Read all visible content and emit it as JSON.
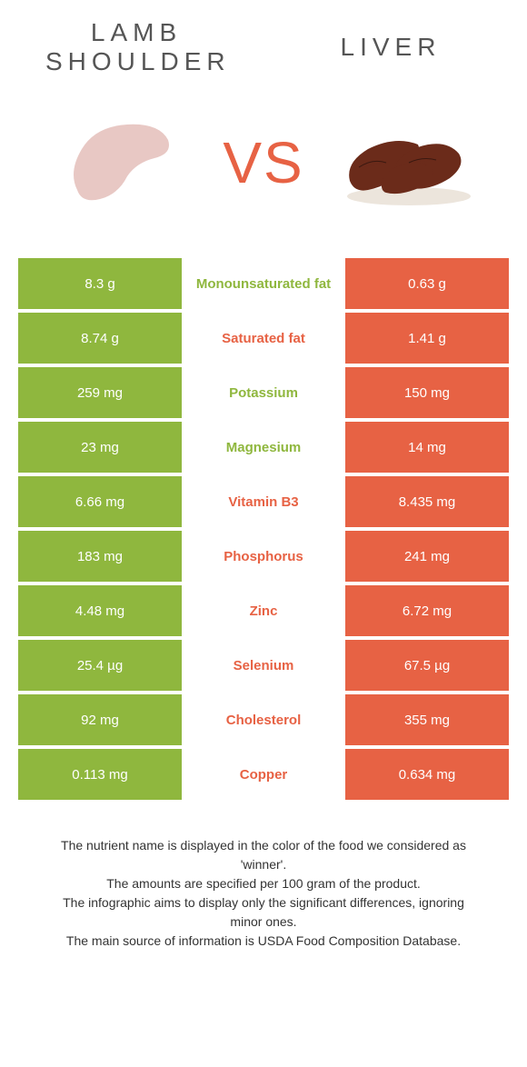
{
  "header": {
    "left_title": "LAMB SHOULDER",
    "right_title": "LIVER",
    "vs_label": "VS"
  },
  "colors": {
    "green": "#8fb73e",
    "orange": "#e76244",
    "text": "#555555"
  },
  "comparison": {
    "rows": [
      {
        "left": "8.3 g",
        "label": "Monounsaturated fat",
        "right": "0.63 g",
        "winner": "green"
      },
      {
        "left": "8.74 g",
        "label": "Saturated fat",
        "right": "1.41 g",
        "winner": "orange"
      },
      {
        "left": "259 mg",
        "label": "Potassium",
        "right": "150 mg",
        "winner": "green"
      },
      {
        "left": "23 mg",
        "label": "Magnesium",
        "right": "14 mg",
        "winner": "green"
      },
      {
        "left": "6.66 mg",
        "label": "Vitamin B3",
        "right": "8.435 mg",
        "winner": "orange"
      },
      {
        "left": "183 mg",
        "label": "Phosphorus",
        "right": "241 mg",
        "winner": "orange"
      },
      {
        "left": "4.48 mg",
        "label": "Zinc",
        "right": "6.72 mg",
        "winner": "orange"
      },
      {
        "left": "25.4 µg",
        "label": "Selenium",
        "right": "67.5 µg",
        "winner": "orange"
      },
      {
        "left": "92 mg",
        "label": "Cholesterol",
        "right": "355 mg",
        "winner": "orange"
      },
      {
        "left": "0.113 mg",
        "label": "Copper",
        "right": "0.634 mg",
        "winner": "orange"
      }
    ]
  },
  "footer": {
    "line1": "The nutrient name is displayed in the color of the food we considered as 'winner'.",
    "line2": "The amounts are specified per 100 gram of the product.",
    "line3": "The infographic aims to display only the significant differences, ignoring minor ones.",
    "line4": "The main source of information is USDA Food Composition Database."
  }
}
